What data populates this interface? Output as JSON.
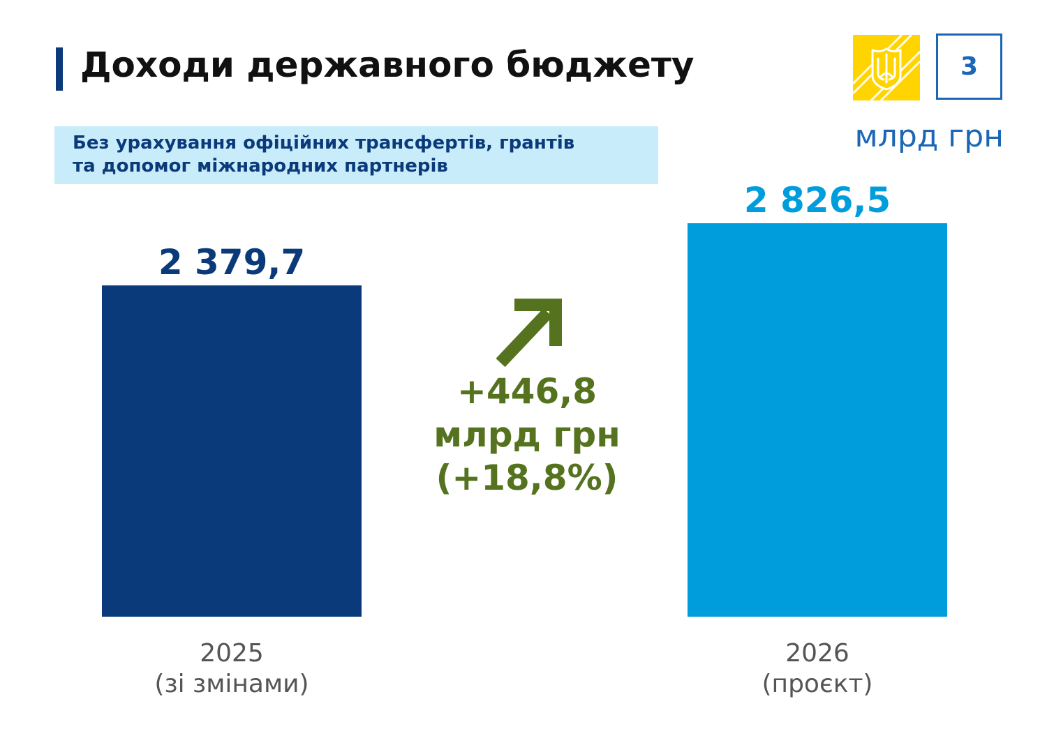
{
  "header": {
    "title": "Доходи державного бюджету",
    "subtitle_line1": "Без урахування офіційних трансфертів, грантів",
    "subtitle_line2": "та допомог міжнародних партнерів",
    "page_number": "3",
    "unit": "млрд грн"
  },
  "change": {
    "value": "+446,8",
    "unit": "млрд грн",
    "percent": "(+18,8%)",
    "icon": "arrow-up-right-icon"
  },
  "colors": {
    "bar_2025": "#0a3a7a",
    "bar_2026": "#009ddc",
    "change": "#55731f",
    "accent": "#1b66b5",
    "logo_yellow": "#ffd400"
  },
  "chart_data": {
    "type": "bar",
    "categories": [
      "2025 (зі змінами)",
      "2026 (проєкт)"
    ],
    "category_lines": [
      [
        "2025",
        "(зі змінами)"
      ],
      [
        "2026",
        "(проєкт)"
      ]
    ],
    "values": [
      2379.7,
      2826.5
    ],
    "value_labels": [
      "2 379,7",
      "2 826,5"
    ],
    "title": "Доходи державного бюджету",
    "ylabel": "",
    "ylim": [
      0,
      2826.5
    ],
    "grid": false,
    "legend": "none"
  }
}
